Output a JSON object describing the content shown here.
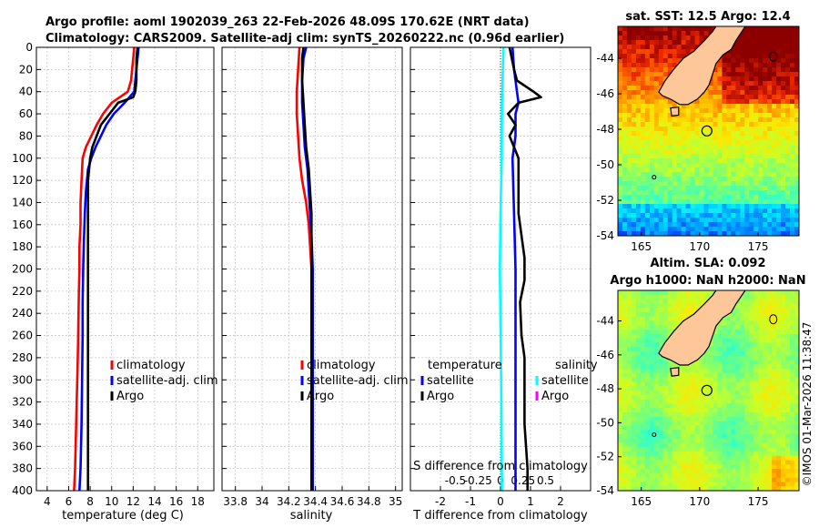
{
  "header": {
    "title_line1": "Argo profile: aoml 1902039_263 22-Feb-2026 48.09S 170.62E (NRT data)",
    "title_line2": "Climatology: CARS2009. Satellite-adj clim: synTS_20260222.nc (0.96d earlier)"
  },
  "colors": {
    "climatology": "#ff0000",
    "satellite": "#0000ff",
    "argo": "#000000",
    "sat_salinity": "#00ffff",
    "argo_salinity_diff": "#ff00ff",
    "land": "#fdc79a"
  },
  "chart_data": [
    {
      "type": "line",
      "id": "temperature",
      "xlabel": "temperature (deg C)",
      "xlim": [
        3,
        19.5
      ],
      "ylim": [
        0,
        400
      ],
      "grid": true,
      "x_ticks": [
        4,
        6,
        8,
        10,
        12,
        14,
        16,
        18
      ],
      "y_ticks": [
        0,
        20,
        40,
        60,
        80,
        100,
        120,
        140,
        160,
        180,
        200,
        220,
        240,
        260,
        280,
        300,
        320,
        340,
        360,
        380,
        400
      ],
      "legend": {
        "position": "lower-right",
        "entries": [
          "climatology",
          "satellite-adj. clim",
          "Argo"
        ]
      },
      "series": [
        {
          "name": "climatology",
          "color": "#ff0000",
          "points": [
            [
              12.1,
              0
            ],
            [
              12.0,
              10
            ],
            [
              11.9,
              20
            ],
            [
              11.8,
              30
            ],
            [
              11.5,
              40
            ],
            [
              10.0,
              50
            ],
            [
              9.2,
              60
            ],
            [
              8.6,
              70
            ],
            [
              8.1,
              80
            ],
            [
              7.6,
              90
            ],
            [
              7.3,
              100
            ],
            [
              7.2,
              120
            ],
            [
              7.1,
              140
            ],
            [
              7.1,
              160
            ],
            [
              7.0,
              180
            ],
            [
              7.0,
              200
            ],
            [
              6.95,
              220
            ],
            [
              6.9,
              250
            ],
            [
              6.85,
              280
            ],
            [
              6.8,
              300
            ],
            [
              6.7,
              340
            ],
            [
              6.6,
              380
            ],
            [
              6.5,
              400
            ]
          ]
        },
        {
          "name": "satellite-adj. clim",
          "color": "#0000ff",
          "points": [
            [
              12.5,
              0
            ],
            [
              12.4,
              10
            ],
            [
              12.3,
              20
            ],
            [
              12.2,
              30
            ],
            [
              12.1,
              40
            ],
            [
              11.2,
              50
            ],
            [
              10.2,
              60
            ],
            [
              9.5,
              70
            ],
            [
              9.0,
              80
            ],
            [
              8.5,
              90
            ],
            [
              8.1,
              100
            ],
            [
              7.8,
              110
            ],
            [
              7.6,
              130
            ],
            [
              7.5,
              150
            ],
            [
              7.4,
              180
            ],
            [
              7.35,
              200
            ],
            [
              7.3,
              230
            ],
            [
              7.3,
              260
            ],
            [
              7.25,
              300
            ],
            [
              7.2,
              340
            ],
            [
              7.1,
              380
            ],
            [
              7.0,
              400
            ]
          ]
        },
        {
          "name": "Argo",
          "color": "#000000",
          "points": [
            [
              12.4,
              0
            ],
            [
              12.3,
              10
            ],
            [
              12.3,
              20
            ],
            [
              12.3,
              30
            ],
            [
              12.2,
              40
            ],
            [
              12.0,
              45
            ],
            [
              10.6,
              50
            ],
            [
              9.8,
              60
            ],
            [
              9.0,
              70
            ],
            [
              8.6,
              80
            ],
            [
              8.2,
              90
            ],
            [
              8.0,
              100
            ],
            [
              7.8,
              120
            ],
            [
              7.8,
              150
            ],
            [
              7.8,
              180
            ],
            [
              7.8,
              200
            ],
            [
              7.8,
              230
            ],
            [
              7.8,
              260
            ],
            [
              7.8,
              300
            ],
            [
              7.8,
              330
            ],
            [
              7.8,
              360
            ],
            [
              7.8,
              400
            ]
          ]
        }
      ]
    },
    {
      "type": "line",
      "id": "salinity",
      "xlabel": "salinity",
      "xlim": [
        33.7,
        35.05
      ],
      "ylim": [
        0,
        400
      ],
      "grid": true,
      "x_ticks": [
        33.8,
        34,
        34.2,
        34.4,
        34.6,
        34.8,
        35
      ],
      "legend": {
        "position": "lower-right",
        "entries": [
          "climatology",
          "satellite-adj. clim",
          "Argo"
        ]
      },
      "series": [
        {
          "name": "climatology",
          "color": "#ff0000",
          "points": [
            [
              34.28,
              0
            ],
            [
              34.27,
              20
            ],
            [
              34.26,
              40
            ],
            [
              34.26,
              60
            ],
            [
              34.27,
              80
            ],
            [
              34.28,
              100
            ],
            [
              34.3,
              120
            ],
            [
              34.33,
              140
            ],
            [
              34.35,
              160
            ],
            [
              34.36,
              180
            ],
            [
              34.37,
              200
            ],
            [
              34.37,
              250
            ],
            [
              34.37,
              300
            ],
            [
              34.37,
              350
            ],
            [
              34.37,
              400
            ]
          ]
        },
        {
          "name": "satellite-adj. clim",
          "color": "#0000ff",
          "points": [
            [
              34.33,
              0
            ],
            [
              34.31,
              10
            ],
            [
              34.3,
              30
            ],
            [
              34.3,
              50
            ],
            [
              34.31,
              70
            ],
            [
              34.32,
              90
            ],
            [
              34.34,
              110
            ],
            [
              34.35,
              130
            ],
            [
              34.36,
              150
            ],
            [
              34.37,
              170
            ],
            [
              34.38,
              200
            ],
            [
              34.38,
              250
            ],
            [
              34.38,
              300
            ],
            [
              34.38,
              350
            ],
            [
              34.38,
              400
            ]
          ]
        },
        {
          "name": "Argo",
          "color": "#000000",
          "points": [
            [
              34.31,
              0
            ],
            [
              34.3,
              10
            ],
            [
              34.3,
              30
            ],
            [
              34.31,
              50
            ],
            [
              34.32,
              70
            ],
            [
              34.33,
              90
            ],
            [
              34.35,
              110
            ],
            [
              34.36,
              130
            ],
            [
              34.37,
              150
            ],
            [
              34.37,
              200
            ],
            [
              34.37,
              250
            ],
            [
              34.37,
              300
            ],
            [
              34.37,
              350
            ],
            [
              34.37,
              400
            ]
          ]
        }
      ]
    },
    {
      "type": "line",
      "id": "difference",
      "xlabel": "T difference from climatology",
      "xlim": [
        -3,
        3
      ],
      "ylim": [
        0,
        400
      ],
      "grid": true,
      "x_ticks": [
        -2,
        -1,
        0,
        1,
        2
      ],
      "x_tick_labels": [
        "-2",
        "-1",
        "0",
        "1",
        "2"
      ],
      "secondary_axis": {
        "label": "S difference from climatology",
        "ticks": [
          -0.5,
          -0.25,
          0,
          0.25,
          0.5
        ],
        "tick_labels": [
          "-0.5",
          "-0.25",
          "0",
          "0.25",
          "0.5"
        ],
        "xlim": [
          -1,
          1
        ]
      },
      "legend": {
        "position": "lower-right",
        "temperature_header": "temperature",
        "salinity_header": "salinity",
        "temperature_entries": [
          "satellite",
          "Argo"
        ],
        "salinity_entries": [
          "satellite",
          "Argo"
        ]
      },
      "series": [
        {
          "name": "satellite T",
          "color": "#0000ff",
          "points": [
            [
              0.4,
              0
            ],
            [
              0.45,
              20
            ],
            [
              0.55,
              40
            ],
            [
              0.6,
              50
            ],
            [
              0.5,
              60
            ],
            [
              0.5,
              80
            ],
            [
              0.4,
              100
            ],
            [
              0.45,
              150
            ],
            [
              0.5,
              200
            ],
            [
              0.5,
              250
            ],
            [
              0.5,
              300
            ],
            [
              0.5,
              350
            ],
            [
              0.5,
              400
            ]
          ]
        },
        {
          "name": "satellite S",
          "color": "#00ffff",
          "points": [
            [
              0.1,
              0
            ],
            [
              0.08,
              20
            ],
            [
              0.05,
              50
            ],
            [
              0.04,
              100
            ],
            [
              0.0,
              150
            ],
            [
              -0.02,
              200
            ],
            [
              0.0,
              250
            ],
            [
              0.02,
              300
            ],
            [
              0.05,
              400
            ]
          ]
        },
        {
          "name": "Argo T",
          "color": "#000000",
          "points": [
            [
              0.3,
              0
            ],
            [
              0.45,
              20
            ],
            [
              0.55,
              30
            ],
            [
              1.1,
              40
            ],
            [
              1.35,
              45
            ],
            [
              0.6,
              50
            ],
            [
              0.25,
              60
            ],
            [
              0.5,
              70
            ],
            [
              0.3,
              80
            ],
            [
              0.45,
              90
            ],
            [
              0.6,
              100
            ],
            [
              0.6,
              120
            ],
            [
              0.6,
              150
            ],
            [
              0.7,
              170
            ],
            [
              0.8,
              190
            ],
            [
              0.8,
              210
            ],
            [
              0.65,
              230
            ],
            [
              0.7,
              260
            ],
            [
              0.8,
              280
            ],
            [
              0.8,
              300
            ],
            [
              0.8,
              340
            ],
            [
              0.9,
              380
            ],
            [
              0.9,
              400
            ]
          ]
        }
      ]
    },
    {
      "type": "heatmap",
      "id": "sst_map",
      "title": "sat. SST: 12.5 Argo: 12.4",
      "x_ticks": [
        165,
        170,
        175
      ],
      "y_ticks": [
        -44,
        -46,
        -48,
        -50,
        -52,
        -54
      ],
      "xlim": [
        163,
        178.5
      ],
      "ylim": [
        -54,
        -42.2
      ],
      "argo_position": [
        170.62,
        -48.09
      ]
    },
    {
      "type": "heatmap",
      "id": "sla_map",
      "title": "Altim. SLA: 0.092",
      "subtitle": "Argo h1000: NaN h2000: NaN",
      "x_ticks": [
        165,
        170,
        175
      ],
      "y_ticks": [
        -44,
        -46,
        -48,
        -50,
        -52,
        -54
      ],
      "xlim": [
        163,
        178.5
      ],
      "ylim": [
        -54,
        -42.2
      ],
      "argo_position": [
        170.62,
        -48.09
      ]
    }
  ],
  "footer": {
    "credit": "©IMOS 01-Mar-2026 11:38:47"
  }
}
